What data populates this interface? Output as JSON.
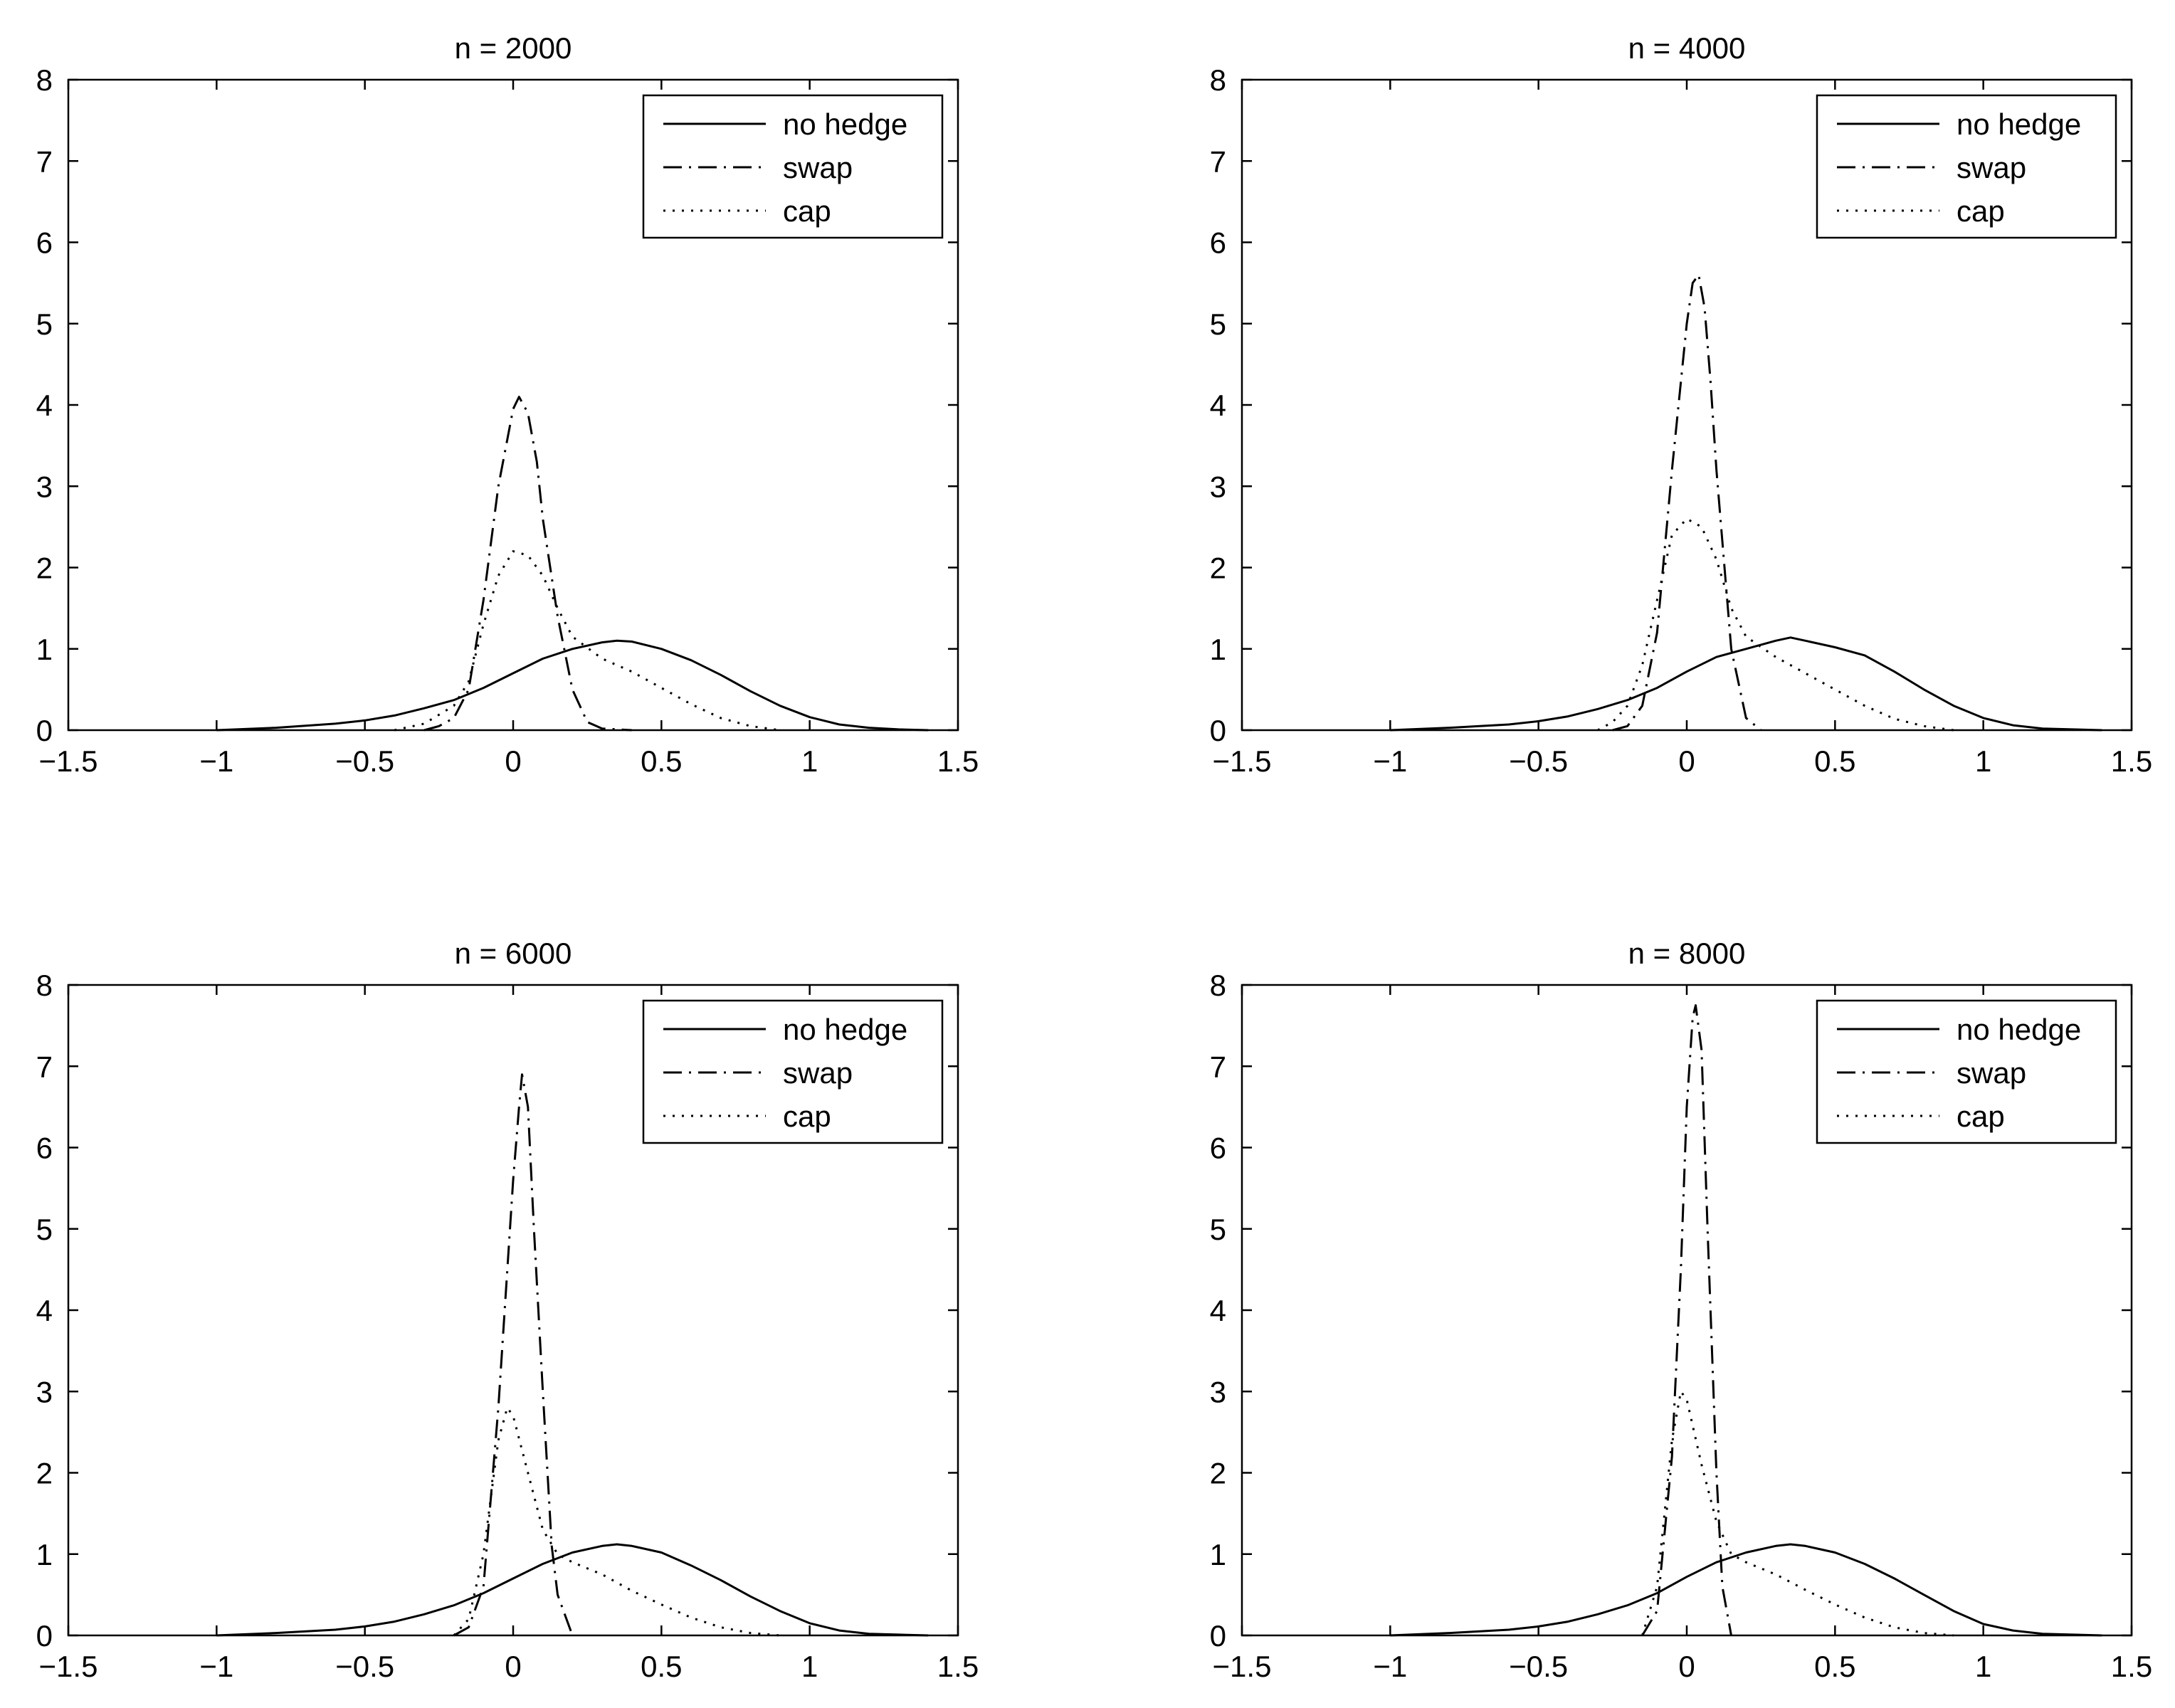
{
  "figure": {
    "colors": {
      "background": "#ffffff",
      "ink": "#000000"
    }
  },
  "chart_data": [
    {
      "type": "line",
      "title": "n = 2000",
      "xlabel": "",
      "ylabel": "",
      "xlim": [
        -1.5,
        1.5
      ],
      "ylim": [
        0,
        8
      ],
      "xticks": [
        "-1.5",
        "-1",
        "-0.5",
        "0",
        "0.5",
        "1",
        "1.5"
      ],
      "yticks": [
        "0",
        "1",
        "2",
        "3",
        "4",
        "5",
        "6",
        "7",
        "8"
      ],
      "legend": "top-right",
      "series": [
        {
          "name": "no hedge",
          "style": "solid",
          "x": [
            -1.0,
            -0.8,
            -0.6,
            -0.5,
            -0.4,
            -0.3,
            -0.2,
            -0.1,
            0.0,
            0.1,
            0.2,
            0.3,
            0.35,
            0.4,
            0.5,
            0.6,
            0.7,
            0.8,
            0.9,
            1.0,
            1.1,
            1.2,
            1.3,
            1.4
          ],
          "y": [
            0.0,
            0.03,
            0.08,
            0.12,
            0.18,
            0.27,
            0.37,
            0.52,
            0.7,
            0.88,
            1.0,
            1.08,
            1.1,
            1.09,
            1.0,
            0.86,
            0.68,
            0.48,
            0.3,
            0.16,
            0.07,
            0.03,
            0.01,
            0.0
          ]
        },
        {
          "name": "swap",
          "style": "dashdot",
          "x": [
            -0.3,
            -0.25,
            -0.2,
            -0.15,
            -0.1,
            -0.05,
            0.0,
            0.02,
            0.05,
            0.08,
            0.1,
            0.15,
            0.2,
            0.25,
            0.3,
            0.4
          ],
          "y": [
            0.0,
            0.05,
            0.15,
            0.5,
            1.6,
            3.0,
            3.95,
            4.1,
            3.9,
            3.3,
            2.6,
            1.4,
            0.5,
            0.1,
            0.02,
            0.0
          ]
        },
        {
          "name": "cap",
          "style": "dotted",
          "x": [
            -0.4,
            -0.3,
            -0.2,
            -0.15,
            -0.1,
            -0.05,
            0.0,
            0.05,
            0.1,
            0.15,
            0.2,
            0.3,
            0.4,
            0.5,
            0.6,
            0.7,
            0.8,
            0.9
          ],
          "y": [
            0.0,
            0.08,
            0.3,
            0.6,
            1.3,
            1.9,
            2.2,
            2.15,
            1.9,
            1.5,
            1.15,
            0.88,
            0.72,
            0.52,
            0.32,
            0.15,
            0.05,
            0.0
          ]
        }
      ]
    },
    {
      "type": "line",
      "title": "n = 4000",
      "xlabel": "",
      "ylabel": "",
      "xlim": [
        -1.5,
        1.5
      ],
      "ylim": [
        0,
        8
      ],
      "xticks": [
        "-1.5",
        "-1",
        "-0.5",
        "0",
        "0.5",
        "1",
        "1.5"
      ],
      "yticks": [
        "0",
        "1",
        "2",
        "3",
        "4",
        "5",
        "6",
        "7",
        "8"
      ],
      "legend": "top-right",
      "series": [
        {
          "name": "no hedge",
          "style": "solid",
          "x": [
            -1.0,
            -0.8,
            -0.6,
            -0.5,
            -0.4,
            -0.3,
            -0.2,
            -0.1,
            0.0,
            0.1,
            0.2,
            0.3,
            0.35,
            0.4,
            0.5,
            0.6,
            0.7,
            0.8,
            0.9,
            1.0,
            1.1,
            1.2,
            1.3,
            1.4
          ],
          "y": [
            0.0,
            0.03,
            0.07,
            0.11,
            0.17,
            0.26,
            0.37,
            0.52,
            0.72,
            0.9,
            1.0,
            1.1,
            1.14,
            1.1,
            1.02,
            0.92,
            0.72,
            0.5,
            0.3,
            0.15,
            0.06,
            0.02,
            0.01,
            0.0
          ]
        },
        {
          "name": "swap",
          "style": "dashdot",
          "x": [
            -0.25,
            -0.2,
            -0.15,
            -0.1,
            -0.05,
            0.0,
            0.02,
            0.04,
            0.06,
            0.08,
            0.1,
            0.15,
            0.2,
            0.25
          ],
          "y": [
            0.0,
            0.05,
            0.3,
            1.2,
            3.2,
            5.0,
            5.5,
            5.6,
            5.2,
            4.3,
            3.2,
            1.0,
            0.15,
            0.0
          ]
        },
        {
          "name": "cap",
          "style": "dotted",
          "x": [
            -0.3,
            -0.25,
            -0.2,
            -0.15,
            -0.1,
            -0.05,
            0.0,
            0.05,
            0.1,
            0.15,
            0.2,
            0.3,
            0.4,
            0.5,
            0.6,
            0.7,
            0.8,
            0.9
          ],
          "y": [
            0.0,
            0.1,
            0.3,
            0.8,
            1.6,
            2.4,
            2.6,
            2.5,
            2.1,
            1.5,
            1.15,
            0.9,
            0.7,
            0.5,
            0.3,
            0.14,
            0.05,
            0.0
          ]
        }
      ]
    },
    {
      "type": "line",
      "title": "n = 6000",
      "xlabel": "",
      "ylabel": "",
      "xlim": [
        -1.5,
        1.5
      ],
      "ylim": [
        0,
        8
      ],
      "xticks": [
        "-1.5",
        "-1",
        "-0.5",
        "0",
        "0.5",
        "1",
        "1.5"
      ],
      "yticks": [
        "0",
        "1",
        "2",
        "3",
        "4",
        "5",
        "6",
        "7",
        "8"
      ],
      "legend": "top-right",
      "series": [
        {
          "name": "no hedge",
          "style": "solid",
          "x": [
            -1.0,
            -0.8,
            -0.6,
            -0.5,
            -0.4,
            -0.3,
            -0.2,
            -0.1,
            0.0,
            0.1,
            0.2,
            0.3,
            0.35,
            0.4,
            0.5,
            0.6,
            0.7,
            0.8,
            0.9,
            1.0,
            1.1,
            1.2,
            1.3,
            1.4
          ],
          "y": [
            0.0,
            0.03,
            0.07,
            0.11,
            0.17,
            0.26,
            0.37,
            0.52,
            0.7,
            0.88,
            1.02,
            1.1,
            1.12,
            1.1,
            1.02,
            0.86,
            0.68,
            0.48,
            0.3,
            0.15,
            0.06,
            0.02,
            0.01,
            0.0
          ]
        },
        {
          "name": "swap",
          "style": "dashdot",
          "x": [
            -0.2,
            -0.15,
            -0.1,
            -0.05,
            0.0,
            0.02,
            0.03,
            0.05,
            0.07,
            0.1,
            0.13,
            0.15,
            0.2
          ],
          "y": [
            0.0,
            0.1,
            0.6,
            2.8,
            5.6,
            6.5,
            6.9,
            6.5,
            5.0,
            3.0,
            1.1,
            0.5,
            0.0
          ]
        },
        {
          "name": "cap",
          "style": "dotted",
          "x": [
            -0.2,
            -0.15,
            -0.1,
            -0.05,
            -0.02,
            0.0,
            0.05,
            0.1,
            0.15,
            0.2,
            0.3,
            0.4,
            0.5,
            0.6,
            0.7,
            0.8,
            0.9
          ],
          "y": [
            0.0,
            0.2,
            1.0,
            2.4,
            2.8,
            2.7,
            2.0,
            1.3,
            1.0,
            0.9,
            0.75,
            0.55,
            0.38,
            0.22,
            0.1,
            0.03,
            0.0
          ]
        }
      ]
    },
    {
      "type": "line",
      "title": "n = 8000",
      "xlabel": "",
      "ylabel": "",
      "xlim": [
        -1.5,
        1.5
      ],
      "ylim": [
        0,
        8
      ],
      "xticks": [
        "-1.5",
        "-1",
        "-0.5",
        "0",
        "0.5",
        "1",
        "1.5"
      ],
      "yticks": [
        "0",
        "1",
        "2",
        "3",
        "4",
        "5",
        "6",
        "7",
        "8"
      ],
      "legend": "top-right",
      "series": [
        {
          "name": "no hedge",
          "style": "solid",
          "x": [
            -1.0,
            -0.8,
            -0.6,
            -0.5,
            -0.4,
            -0.3,
            -0.2,
            -0.1,
            0.0,
            0.1,
            0.2,
            0.3,
            0.35,
            0.4,
            0.5,
            0.6,
            0.7,
            0.8,
            0.9,
            1.0,
            1.1,
            1.2,
            1.3,
            1.4
          ],
          "y": [
            0.0,
            0.03,
            0.07,
            0.11,
            0.17,
            0.26,
            0.37,
            0.52,
            0.72,
            0.9,
            1.02,
            1.1,
            1.12,
            1.1,
            1.02,
            0.88,
            0.7,
            0.5,
            0.3,
            0.14,
            0.06,
            0.02,
            0.01,
            0.0
          ]
        },
        {
          "name": "swap",
          "style": "dashdot",
          "x": [
            -0.15,
            -0.1,
            -0.05,
            -0.02,
            0.0,
            0.02,
            0.03,
            0.05,
            0.07,
            0.1,
            0.12,
            0.15
          ],
          "y": [
            0.0,
            0.3,
            2.2,
            4.5,
            6.5,
            7.6,
            7.75,
            7.2,
            5.0,
            2.0,
            0.6,
            0.0
          ]
        },
        {
          "name": "cap",
          "style": "dotted",
          "x": [
            -0.15,
            -0.1,
            -0.05,
            -0.02,
            0.0,
            0.05,
            0.1,
            0.15,
            0.2,
            0.3,
            0.4,
            0.5,
            0.6,
            0.7,
            0.8,
            0.9
          ],
          "y": [
            0.0,
            0.6,
            2.4,
            3.0,
            2.9,
            2.1,
            1.4,
            1.0,
            0.9,
            0.75,
            0.56,
            0.38,
            0.22,
            0.1,
            0.03,
            0.0
          ]
        }
      ]
    }
  ]
}
